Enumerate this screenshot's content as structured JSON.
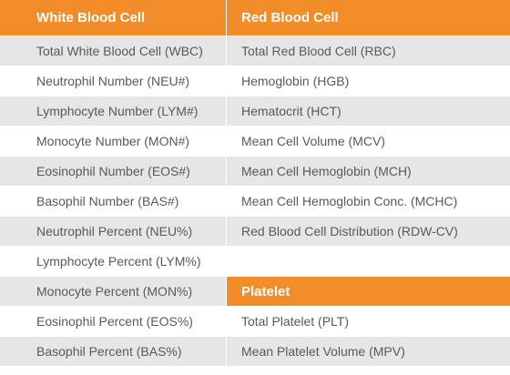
{
  "header": {
    "white": "White Blood Cell",
    "red": "Red Blood Cell"
  },
  "white_cells": [
    "Total White Blood Cell  (WBC)",
    "Neutrophil Number (NEU#)",
    "Lymphocyte Number (LYM#)",
    "Monocyte Number (MON#)",
    "Eosinophil Number (EOS#)",
    "Basophil Number (BAS#)",
    "Neutrophil Percent (NEU%)",
    "Lymphocyte Percent (LYM%)",
    "Monocyte Percent (MON%)",
    "Eosinophil Percent (EOS%)",
    "Basophil Percent (BAS%)"
  ],
  "red_cells": [
    "Total Red Blood Cell (RBC)",
    "Hemoglobin (HGB)",
    "Hematocrit (HCT)",
    "Mean Cell Volume (MCV)",
    "Mean Cell Hemoglobin (MCH)",
    "Mean Cell Hemoglobin Conc. (MCHC)",
    "Red Blood Cell Distribution (RDW-CV)"
  ],
  "platelet": {
    "heading": "Platelet",
    "items": [
      "Total Platelet (PLT)",
      "Mean Platelet Volume (MPV)"
    ]
  },
  "colors": {
    "accent": "#f28c28",
    "row_shade": "#e6e6e7",
    "text": "#555a5e"
  }
}
